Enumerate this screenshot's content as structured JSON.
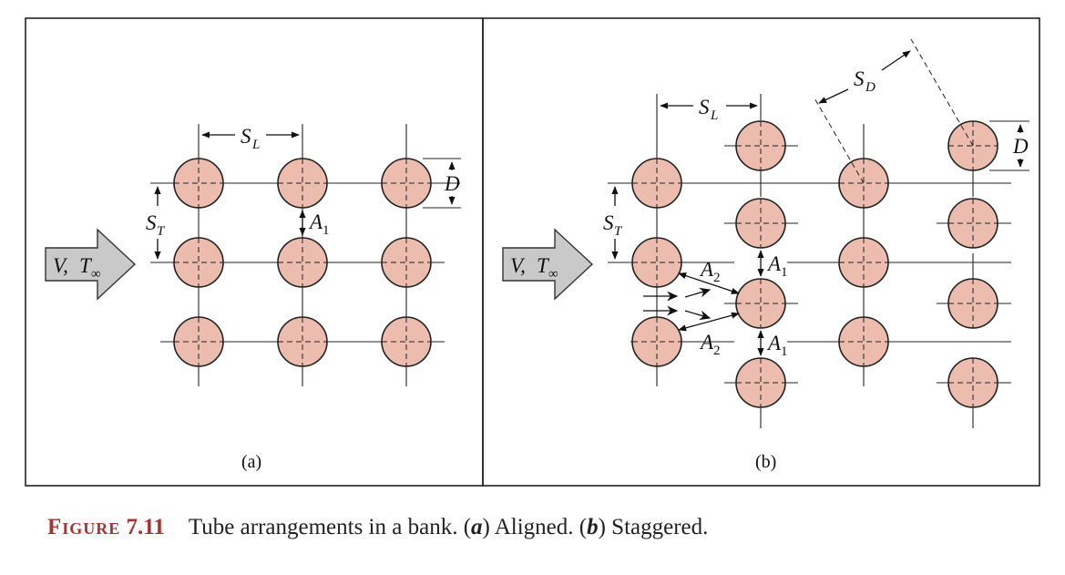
{
  "panels": {
    "a": {
      "label": "(a)",
      "flow": {
        "V": "V,",
        "T": "T",
        "T_sub": "∞"
      },
      "dims": {
        "SL": "S",
        "SL_sub": "L",
        "ST": "S",
        "ST_sub": "T",
        "D": "D",
        "A1": "A",
        "A1_sub": "1"
      }
    },
    "b": {
      "label": "(b)",
      "flow": {
        "V": "V,",
        "T": "T",
        "T_sub": "∞"
      },
      "dims": {
        "SL": "S",
        "SL_sub": "L",
        "ST": "S",
        "ST_sub": "T",
        "SD": "S",
        "SD_sub": "D",
        "D": "D",
        "A1": "A",
        "A1_sub": "1",
        "A2": "A",
        "A2_sub": "2"
      }
    }
  },
  "caption": {
    "figure_word": "Figure",
    "figure_number": "7.11",
    "text_1": "Tube arrangements in a bank. (",
    "a": "a",
    "text_2": ") Aligned. (",
    "b": "b",
    "text_3": ") Staggered."
  },
  "colors": {
    "tube_fill": "#ecbcae",
    "caption_accent": "#a8322f",
    "flow_arrow": "#c9c9c9"
  }
}
